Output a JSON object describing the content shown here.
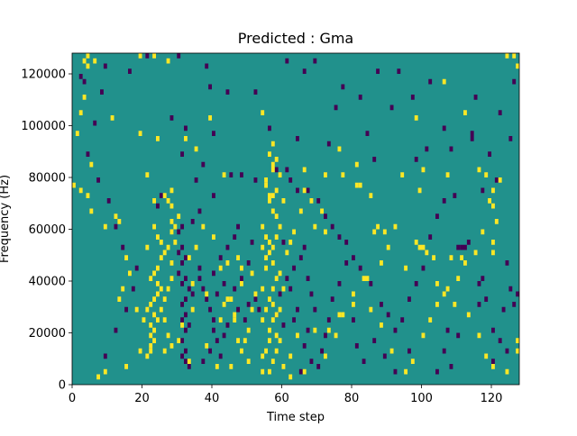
{
  "chart_data": {
    "type": "heatmap",
    "title": "Predicted : Gma",
    "xlabel": "Time step",
    "ylabel": "Frequency (Hz)",
    "xlim": [
      0,
      128
    ],
    "ylim": [
      0,
      128000
    ],
    "x_ticks": [
      0,
      20,
      40,
      60,
      80,
      100,
      120
    ],
    "y_ticks": [
      0,
      20000,
      40000,
      60000,
      80000,
      100000,
      120000
    ],
    "grid": false,
    "legend": "none",
    "n_time_steps": 128,
    "n_freq_bins": 64,
    "levels": {
      "low": -1,
      "mid": 0,
      "high": 1
    },
    "colors": {
      "low": "#440154",
      "mid": "#21918c",
      "high": "#fde725"
    },
    "background_level": 0,
    "high_cells": [
      [
        3,
        62
      ],
      [
        4,
        63
      ],
      [
        4,
        61
      ],
      [
        6,
        62
      ],
      [
        19,
        63
      ],
      [
        23,
        63
      ],
      [
        27,
        62
      ],
      [
        124,
        63
      ],
      [
        126,
        63
      ],
      [
        127,
        61
      ],
      [
        11,
        51
      ],
      [
        39,
        51
      ],
      [
        54,
        52
      ],
      [
        98,
        51
      ],
      [
        112,
        52
      ],
      [
        106,
        58
      ],
      [
        3,
        55
      ],
      [
        19,
        48
      ],
      [
        24,
        47
      ],
      [
        32,
        47
      ],
      [
        21,
        40
      ],
      [
        43,
        40
      ],
      [
        66,
        41
      ],
      [
        72,
        40
      ],
      [
        100,
        41
      ],
      [
        107,
        40
      ],
      [
        116,
        41
      ],
      [
        118,
        40
      ],
      [
        0,
        38
      ],
      [
        2,
        37
      ],
      [
        4,
        36
      ],
      [
        120,
        37
      ],
      [
        119,
        35
      ],
      [
        120,
        34
      ],
      [
        23,
        35
      ],
      [
        28,
        37
      ],
      [
        56,
        36
      ],
      [
        60,
        35
      ],
      [
        68,
        35
      ],
      [
        81,
        38
      ],
      [
        94,
        40
      ],
      [
        99,
        37
      ],
      [
        122,
        39
      ],
      [
        12,
        32
      ],
      [
        13,
        31
      ],
      [
        23,
        30
      ],
      [
        24,
        28
      ],
      [
        26,
        36
      ],
      [
        27,
        35
      ],
      [
        28,
        34
      ],
      [
        28,
        31
      ],
      [
        29,
        30
      ],
      [
        28,
        29
      ],
      [
        29,
        27
      ],
      [
        27,
        26
      ],
      [
        26,
        25
      ],
      [
        25,
        24
      ],
      [
        24,
        22
      ],
      [
        23,
        21
      ],
      [
        22,
        20
      ],
      [
        24,
        19
      ],
      [
        25,
        18
      ],
      [
        24,
        17
      ],
      [
        23,
        16
      ],
      [
        22,
        15
      ],
      [
        21,
        14
      ],
      [
        23,
        13
      ],
      [
        24,
        12
      ],
      [
        22,
        11
      ],
      [
        23,
        10
      ],
      [
        22,
        9
      ],
      [
        23,
        8
      ],
      [
        22,
        7
      ],
      [
        22,
        6
      ],
      [
        21,
        5
      ],
      [
        26,
        6
      ],
      [
        27,
        9
      ],
      [
        28,
        7
      ],
      [
        26,
        12
      ],
      [
        25,
        14
      ],
      [
        26,
        16
      ],
      [
        27,
        18
      ],
      [
        28,
        20
      ],
      [
        21,
        26
      ],
      [
        25,
        27
      ],
      [
        28,
        23
      ],
      [
        30,
        32
      ],
      [
        33,
        24
      ],
      [
        35,
        26
      ],
      [
        34,
        19
      ],
      [
        44,
        23
      ],
      [
        48,
        22
      ],
      [
        51,
        21
      ],
      [
        38,
        17
      ],
      [
        42,
        12
      ],
      [
        43,
        15
      ],
      [
        44,
        16
      ],
      [
        45,
        16
      ],
      [
        46,
        13
      ],
      [
        46,
        12
      ],
      [
        48,
        19
      ],
      [
        52,
        17
      ],
      [
        51,
        14
      ],
      [
        50,
        10
      ],
      [
        49,
        8
      ],
      [
        48,
        6
      ],
      [
        45,
        3
      ],
      [
        50,
        4
      ],
      [
        54,
        2
      ],
      [
        47,
        8
      ],
      [
        56,
        2
      ],
      [
        57,
        4
      ],
      [
        58,
        6
      ],
      [
        59,
        8
      ],
      [
        56,
        10
      ],
      [
        57,
        12
      ],
      [
        58,
        13
      ],
      [
        57,
        15
      ],
      [
        56,
        16
      ],
      [
        57,
        18
      ],
      [
        58,
        20
      ],
      [
        59,
        21
      ],
      [
        57,
        23
      ],
      [
        56,
        25
      ],
      [
        57,
        26
      ],
      [
        58,
        28
      ],
      [
        59,
        30
      ],
      [
        58,
        32
      ],
      [
        57,
        33
      ],
      [
        56,
        35
      ],
      [
        57,
        36
      ],
      [
        58,
        37
      ],
      [
        55,
        38
      ],
      [
        54,
        30
      ],
      [
        55,
        28
      ],
      [
        56,
        27
      ],
      [
        54,
        26
      ],
      [
        55,
        24
      ],
      [
        55,
        22
      ],
      [
        54,
        18
      ],
      [
        55,
        14
      ],
      [
        54,
        12
      ],
      [
        56,
        8
      ],
      [
        55,
        6
      ],
      [
        54,
        5
      ],
      [
        58,
        9
      ],
      [
        60,
        3
      ],
      [
        62,
        5
      ],
      [
        64,
        9
      ],
      [
        59,
        14
      ],
      [
        60,
        18
      ],
      [
        61,
        25
      ],
      [
        62,
        27
      ],
      [
        63,
        29
      ],
      [
        65,
        33
      ],
      [
        66,
        37
      ],
      [
        69,
        30
      ],
      [
        71,
        33
      ],
      [
        72,
        29
      ],
      [
        77,
        40
      ],
      [
        76,
        45
      ],
      [
        81,
        42
      ],
      [
        82,
        38
      ],
      [
        85,
        36
      ],
      [
        86,
        29
      ],
      [
        87,
        30
      ],
      [
        89,
        29
      ],
      [
        98,
        27
      ],
      [
        99,
        26
      ],
      [
        100,
        26
      ],
      [
        103,
        24
      ],
      [
        101,
        25
      ],
      [
        108,
        24
      ],
      [
        111,
        24
      ],
      [
        115,
        25
      ],
      [
        117,
        29
      ],
      [
        120,
        27
      ],
      [
        121,
        31
      ],
      [
        120,
        25
      ],
      [
        1,
        48
      ],
      [
        2,
        52
      ],
      [
        5,
        42
      ],
      [
        35,
        45
      ],
      [
        37,
        30
      ],
      [
        40,
        28
      ],
      [
        42,
        22
      ],
      [
        47,
        24
      ],
      [
        69,
        10
      ],
      [
        73,
        10
      ],
      [
        76,
        13
      ],
      [
        80,
        15
      ],
      [
        83,
        20
      ],
      [
        85,
        14
      ],
      [
        88,
        23
      ],
      [
        90,
        26
      ],
      [
        92,
        30
      ],
      [
        95,
        22
      ],
      [
        104,
        19
      ],
      [
        106,
        17
      ],
      [
        109,
        15
      ],
      [
        113,
        13
      ],
      [
        116,
        9
      ],
      [
        118,
        5
      ],
      [
        120,
        3
      ],
      [
        124,
        2
      ],
      [
        127,
        6
      ],
      [
        127,
        8
      ],
      [
        5,
        33
      ],
      [
        9,
        30
      ],
      [
        15,
        24
      ],
      [
        16,
        21
      ],
      [
        14,
        18
      ],
      [
        13,
        16
      ],
      [
        18,
        14
      ],
      [
        20,
        12
      ],
      [
        19,
        6
      ],
      [
        15,
        3
      ],
      [
        9,
        2
      ],
      [
        7,
        1
      ],
      [
        33,
        4
      ],
      [
        30,
        8
      ],
      [
        31,
        11
      ],
      [
        34,
        14
      ],
      [
        38,
        7
      ],
      [
        41,
        3
      ],
      [
        57,
        41
      ],
      [
        58,
        43
      ],
      [
        56,
        44
      ],
      [
        57,
        46
      ],
      [
        55,
        39
      ],
      [
        59,
        40
      ],
      [
        57,
        42
      ],
      [
        62,
        1
      ],
      [
        66,
        2
      ],
      [
        72,
        5
      ],
      [
        75,
        9
      ],
      [
        77,
        13
      ],
      [
        80,
        17
      ],
      [
        84,
        20
      ],
      [
        88,
        11
      ],
      [
        91,
        6
      ],
      [
        95,
        2
      ],
      [
        97,
        4
      ],
      [
        100,
        9
      ],
      [
        102,
        12
      ],
      [
        104,
        15
      ],
      [
        107,
        18
      ],
      [
        110,
        20
      ],
      [
        112,
        23
      ]
    ],
    "low_cells": [
      [
        2,
        59
      ],
      [
        9,
        61
      ],
      [
        16,
        60
      ],
      [
        21,
        63
      ],
      [
        30,
        63
      ],
      [
        38,
        61
      ],
      [
        44,
        56
      ],
      [
        61,
        62
      ],
      [
        69,
        62
      ],
      [
        77,
        57
      ],
      [
        82,
        55
      ],
      [
        87,
        60
      ],
      [
        93,
        60
      ],
      [
        97,
        55
      ],
      [
        115,
        55
      ],
      [
        126,
        58
      ],
      [
        28,
        51
      ],
      [
        32,
        49
      ],
      [
        40,
        48
      ],
      [
        56,
        49
      ],
      [
        64,
        47
      ],
      [
        73,
        46
      ],
      [
        86,
        43
      ],
      [
        98,
        43
      ],
      [
        101,
        45
      ],
      [
        108,
        45
      ],
      [
        114,
        48
      ],
      [
        114,
        47
      ],
      [
        119,
        44
      ],
      [
        117,
        37
      ],
      [
        109,
        36
      ],
      [
        121,
        39
      ],
      [
        113,
        27
      ],
      [
        112,
        26
      ],
      [
        111,
        26
      ],
      [
        110,
        26
      ],
      [
        117,
        20
      ],
      [
        116,
        19
      ],
      [
        118,
        16
      ],
      [
        116,
        15
      ],
      [
        124,
        23
      ],
      [
        125,
        18
      ],
      [
        127,
        17
      ],
      [
        126,
        15
      ],
      [
        123,
        14
      ],
      [
        120,
        10
      ],
      [
        122,
        8
      ],
      [
        124,
        6
      ],
      [
        120,
        4
      ],
      [
        110,
        9
      ],
      [
        107,
        10
      ],
      [
        106,
        6
      ],
      [
        108,
        3
      ],
      [
        104,
        2
      ],
      [
        96,
        6
      ],
      [
        92,
        10
      ],
      [
        90,
        13
      ],
      [
        88,
        15
      ],
      [
        85,
        19
      ],
      [
        82,
        22
      ],
      [
        80,
        24
      ],
      [
        78,
        27
      ],
      [
        76,
        28
      ],
      [
        74,
        30
      ],
      [
        72,
        32
      ],
      [
        70,
        35
      ],
      [
        67,
        37
      ],
      [
        64,
        37
      ],
      [
        62,
        39
      ],
      [
        58,
        41
      ],
      [
        61,
        41
      ],
      [
        52,
        39
      ],
      [
        48,
        40
      ],
      [
        45,
        40
      ],
      [
        40,
        36
      ],
      [
        36,
        33
      ],
      [
        34,
        31
      ],
      [
        31,
        30
      ],
      [
        30,
        29
      ],
      [
        31,
        26
      ],
      [
        30,
        25
      ],
      [
        32,
        24
      ],
      [
        31,
        23
      ],
      [
        30,
        21
      ],
      [
        32,
        20
      ],
      [
        31,
        19
      ],
      [
        33,
        18
      ],
      [
        34,
        17
      ],
      [
        32,
        16
      ],
      [
        31,
        15
      ],
      [
        32,
        13
      ],
      [
        31,
        12
      ],
      [
        33,
        11
      ],
      [
        32,
        10
      ],
      [
        31,
        8
      ],
      [
        32,
        6
      ],
      [
        31,
        5
      ],
      [
        32,
        4
      ],
      [
        33,
        3
      ],
      [
        36,
        22
      ],
      [
        36,
        20
      ],
      [
        37,
        18
      ],
      [
        38,
        16
      ],
      [
        39,
        14
      ],
      [
        40,
        12
      ],
      [
        40,
        10
      ],
      [
        41,
        8
      ],
      [
        39,
        6
      ],
      [
        37,
        4
      ],
      [
        42,
        5
      ],
      [
        43,
        9
      ],
      [
        44,
        11
      ],
      [
        47,
        14
      ],
      [
        49,
        12
      ],
      [
        50,
        15
      ],
      [
        52,
        16
      ],
      [
        53,
        14
      ],
      [
        46,
        18
      ],
      [
        48,
        20
      ],
      [
        50,
        23
      ],
      [
        51,
        27
      ],
      [
        47,
        30
      ],
      [
        46,
        28
      ],
      [
        44,
        26
      ],
      [
        42,
        24
      ],
      [
        40,
        21
      ],
      [
        41,
        17
      ],
      [
        43,
        19
      ],
      [
        60,
        11
      ],
      [
        63,
        12
      ],
      [
        64,
        14
      ],
      [
        62,
        18
      ],
      [
        61,
        20
      ],
      [
        63,
        22
      ],
      [
        65,
        24
      ],
      [
        66,
        26
      ],
      [
        67,
        20
      ],
      [
        68,
        17
      ],
      [
        69,
        14
      ],
      [
        67,
        10
      ],
      [
        66,
        7
      ],
      [
        68,
        4
      ],
      [
        65,
        2
      ],
      [
        70,
        3
      ],
      [
        71,
        6
      ],
      [
        72,
        9
      ],
      [
        73,
        12
      ],
      [
        74,
        16
      ],
      [
        76,
        19
      ],
      [
        78,
        23
      ],
      [
        80,
        12
      ],
      [
        81,
        7
      ],
      [
        83,
        4
      ],
      [
        86,
        8
      ],
      [
        89,
        5
      ],
      [
        92,
        2
      ],
      [
        94,
        12
      ],
      [
        96,
        16
      ],
      [
        98,
        19
      ],
      [
        100,
        22
      ],
      [
        102,
        28
      ],
      [
        104,
        32
      ],
      [
        106,
        35
      ],
      [
        9,
        5
      ],
      [
        12,
        10
      ],
      [
        15,
        14
      ],
      [
        17,
        18
      ],
      [
        18,
        22
      ],
      [
        14,
        26
      ],
      [
        12,
        30
      ],
      [
        10,
        35
      ],
      [
        7,
        39
      ],
      [
        4,
        44
      ],
      [
        6,
        50
      ],
      [
        8,
        56
      ],
      [
        3,
        58
      ],
      [
        58,
        13
      ],
      [
        59,
        17
      ],
      [
        60,
        27
      ],
      [
        24,
        34
      ],
      [
        25,
        36
      ],
      [
        35,
        39
      ],
      [
        37,
        42
      ],
      [
        31,
        44
      ],
      [
        39,
        57
      ],
      [
        52,
        56
      ],
      [
        66,
        60
      ],
      [
        75,
        53
      ],
      [
        84,
        48
      ],
      [
        91,
        53
      ],
      [
        102,
        58
      ],
      [
        106,
        49
      ],
      [
        122,
        52
      ],
      [
        125,
        47
      ]
    ]
  }
}
